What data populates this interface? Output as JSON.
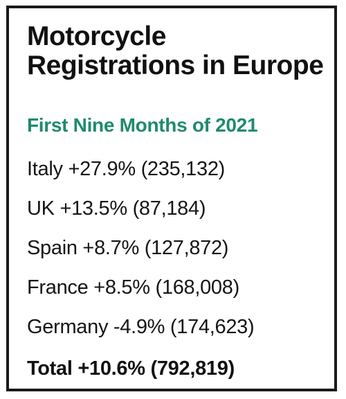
{
  "title": "Motorcycle Registrations in Europe",
  "subtitle": "First Nine Months of 2021",
  "rows": [
    {
      "text": "Italy +27.9% (235,132)"
    },
    {
      "text": "UK +13.5% (87,184)"
    },
    {
      "text": "Spain +8.7% (127,872)"
    },
    {
      "text": "France +8.5% (168,008)"
    },
    {
      "text": "Germany -4.9% (174,623)"
    }
  ],
  "total": "Total +10.6% (792,819)",
  "colors": {
    "title": "#111111",
    "subtitle": "#1f8a6e",
    "border": "#1a1a1a"
  }
}
